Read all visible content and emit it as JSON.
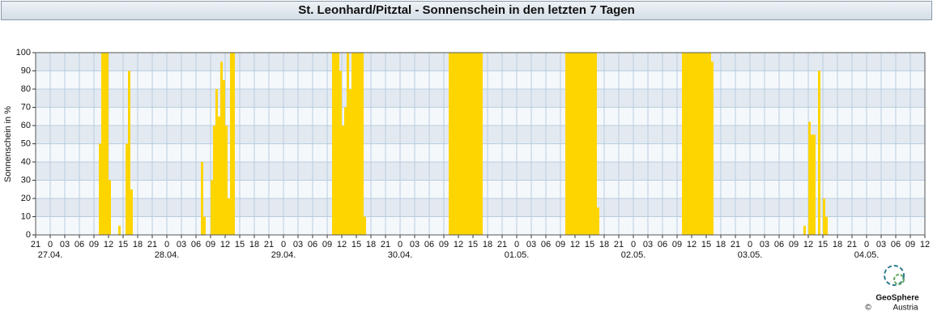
{
  "chart_data": {
    "type": "bar",
    "title": "St. Leonhard/Pitztal - Sonnenschein in den letzten 7 Tagen",
    "ylabel": "Sonnenschein in %",
    "credits": {
      "name": "GeoSphere",
      "sub": "Austria",
      "copyright": "©"
    },
    "xlim": [
      0,
      183
    ],
    "ylim": [
      0,
      100
    ],
    "yticks": [
      0,
      10,
      20,
      30,
      40,
      50,
      60,
      70,
      80,
      90,
      100
    ],
    "xticks": [
      {
        "value": 0,
        "label": "21"
      },
      {
        "value": 3,
        "label": "0"
      },
      {
        "value": 6,
        "label": "03"
      },
      {
        "value": 9,
        "label": "06"
      },
      {
        "value": 12,
        "label": "09"
      },
      {
        "value": 15,
        "label": "12"
      },
      {
        "value": 18,
        "label": "15"
      },
      {
        "value": 21,
        "label": "18"
      },
      {
        "value": 24,
        "label": "21"
      },
      {
        "value": 27,
        "label": "0"
      },
      {
        "value": 30,
        "label": "03"
      },
      {
        "value": 33,
        "label": "06"
      },
      {
        "value": 36,
        "label": "09"
      },
      {
        "value": 39,
        "label": "12"
      },
      {
        "value": 42,
        "label": "15"
      },
      {
        "value": 45,
        "label": "18"
      },
      {
        "value": 48,
        "label": "21"
      },
      {
        "value": 51,
        "label": "0"
      },
      {
        "value": 54,
        "label": "03"
      },
      {
        "value": 57,
        "label": "06"
      },
      {
        "value": 60,
        "label": "09"
      },
      {
        "value": 63,
        "label": "12"
      },
      {
        "value": 66,
        "label": "15"
      },
      {
        "value": 69,
        "label": "18"
      },
      {
        "value": 72,
        "label": "21"
      },
      {
        "value": 75,
        "label": "0"
      },
      {
        "value": 78,
        "label": "03"
      },
      {
        "value": 81,
        "label": "06"
      },
      {
        "value": 84,
        "label": "09"
      },
      {
        "value": 87,
        "label": "12"
      },
      {
        "value": 90,
        "label": "15"
      },
      {
        "value": 93,
        "label": "18"
      },
      {
        "value": 96,
        "label": "21"
      },
      {
        "value": 99,
        "label": "0"
      },
      {
        "value": 102,
        "label": "03"
      },
      {
        "value": 105,
        "label": "06"
      },
      {
        "value": 108,
        "label": "09"
      },
      {
        "value": 111,
        "label": "12"
      },
      {
        "value": 114,
        "label": "15"
      },
      {
        "value": 117,
        "label": "18"
      },
      {
        "value": 120,
        "label": "21"
      },
      {
        "value": 123,
        "label": "0"
      },
      {
        "value": 126,
        "label": "03"
      },
      {
        "value": 129,
        "label": "06"
      },
      {
        "value": 132,
        "label": "09"
      },
      {
        "value": 135,
        "label": "12"
      },
      {
        "value": 138,
        "label": "15"
      },
      {
        "value": 141,
        "label": "18"
      },
      {
        "value": 144,
        "label": "21"
      },
      {
        "value": 147,
        "label": "0"
      },
      {
        "value": 150,
        "label": "03"
      },
      {
        "value": 153,
        "label": "06"
      },
      {
        "value": 156,
        "label": "09"
      },
      {
        "value": 159,
        "label": "12"
      },
      {
        "value": 162,
        "label": "15"
      },
      {
        "value": 165,
        "label": "18"
      },
      {
        "value": 168,
        "label": "21"
      },
      {
        "value": 171,
        "label": "0"
      },
      {
        "value": 174,
        "label": "03"
      },
      {
        "value": 177,
        "label": "06"
      },
      {
        "value": 180,
        "label": "09"
      },
      {
        "value": 183,
        "label": "12"
      }
    ],
    "date_labels": [
      {
        "value": 3,
        "label": "27.04."
      },
      {
        "value": 27,
        "label": "28.04."
      },
      {
        "value": 51,
        "label": "29.04."
      },
      {
        "value": 75,
        "label": "30.04."
      },
      {
        "value": 99,
        "label": "01.05."
      },
      {
        "value": 123,
        "label": "02.05."
      },
      {
        "value": 147,
        "label": "03.05."
      },
      {
        "value": 171,
        "label": "04.05."
      }
    ],
    "grid": true,
    "series": [
      {
        "color": "#ffd500",
        "x": [
          13,
          13.5,
          14,
          14.5,
          15,
          17,
          18.5,
          19,
          19.5,
          34,
          34.5,
          36,
          36.5,
          37,
          37.5,
          38,
          38.5,
          39,
          39.5,
          40,
          40.5,
          61,
          61.5,
          62,
          62.5,
          63,
          63.5,
          64,
          64.5,
          65,
          65.5,
          66,
          66.5,
          67,
          67.5,
          85,
          85.5,
          86,
          86.5,
          87,
          87.5,
          88,
          88.5,
          89,
          89.5,
          90,
          90.5,
          91,
          91.5,
          109,
          109.5,
          110,
          110.5,
          111,
          111.5,
          112,
          112.5,
          113,
          113.5,
          114,
          114.5,
          115,
          115.5,
          133,
          133.5,
          134,
          134.5,
          135,
          135.5,
          136,
          136.5,
          137,
          137.5,
          138,
          138.5,
          139,
          158,
          159,
          159.5,
          160,
          161,
          162,
          162.5
        ],
        "values": [
          50,
          100,
          100,
          100,
          30,
          5,
          50,
          90,
          25,
          40,
          10,
          30,
          60,
          80,
          65,
          95,
          85,
          60,
          20,
          100,
          100,
          100,
          100,
          100,
          90,
          60,
          70,
          100,
          80,
          100,
          100,
          100,
          100,
          100,
          10,
          100,
          100,
          100,
          100,
          100,
          100,
          100,
          100,
          100,
          100,
          100,
          100,
          100,
          100,
          100,
          100,
          100,
          100,
          100,
          100,
          100,
          100,
          100,
          100,
          100,
          100,
          100,
          15,
          100,
          100,
          100,
          100,
          100,
          100,
          100,
          100,
          100,
          100,
          100,
          100,
          95,
          5,
          62,
          55,
          55,
          90,
          20,
          10
        ]
      }
    ]
  }
}
